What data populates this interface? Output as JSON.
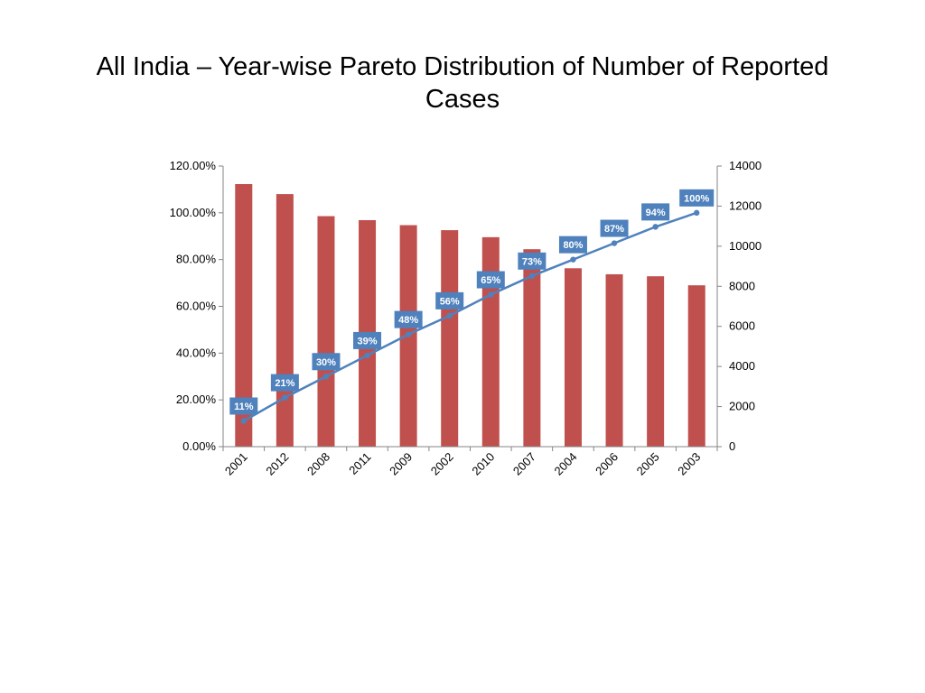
{
  "title_lines": [
    "All India – Year-wise Pareto Distribution of Number of Reported",
    "Cases"
  ],
  "chart_data": {
    "type": "bar",
    "title": "All India – Year-wise Pareto Distribution of Number of Reported Cases",
    "categories": [
      "2001",
      "2012",
      "2008",
      "2011",
      "2009",
      "2002",
      "2010",
      "2007",
      "2004",
      "2006",
      "2005",
      "2003"
    ],
    "series": [
      {
        "type": "bar",
        "axis": "right",
        "color": "#c0504d",
        "values": [
          13100,
          12600,
          11500,
          11300,
          11050,
          10800,
          10450,
          9850,
          8900,
          8600,
          8500,
          8050
        ]
      },
      {
        "type": "line",
        "axis": "left",
        "color": "#4f81bd",
        "values": [
          0.11,
          0.21,
          0.3,
          0.39,
          0.48,
          0.56,
          0.65,
          0.73,
          0.8,
          0.87,
          0.94,
          1.0
        ],
        "data_labels": [
          "11%",
          "21%",
          "30%",
          "39%",
          "48%",
          "56%",
          "65%",
          "73%",
          "80%",
          "87%",
          "94%",
          "100%"
        ]
      }
    ],
    "y_left": {
      "min": 0,
      "max": 1.2,
      "ticks": [
        0,
        0.2,
        0.4,
        0.6,
        0.8,
        1.0,
        1.2
      ],
      "tick_labels": [
        "0.00%",
        "20.00%",
        "40.00%",
        "60.00%",
        "80.00%",
        "100.00%",
        "120.00%"
      ]
    },
    "y_right": {
      "min": 0,
      "max": 14000,
      "ticks": [
        0,
        2000,
        4000,
        6000,
        8000,
        10000,
        12000,
        14000
      ],
      "tick_labels": [
        "0",
        "2000",
        "4000",
        "6000",
        "8000",
        "10000",
        "12000",
        "14000"
      ]
    },
    "xlabel": "",
    "ylabel": "",
    "grid": false,
    "legend": "none"
  }
}
